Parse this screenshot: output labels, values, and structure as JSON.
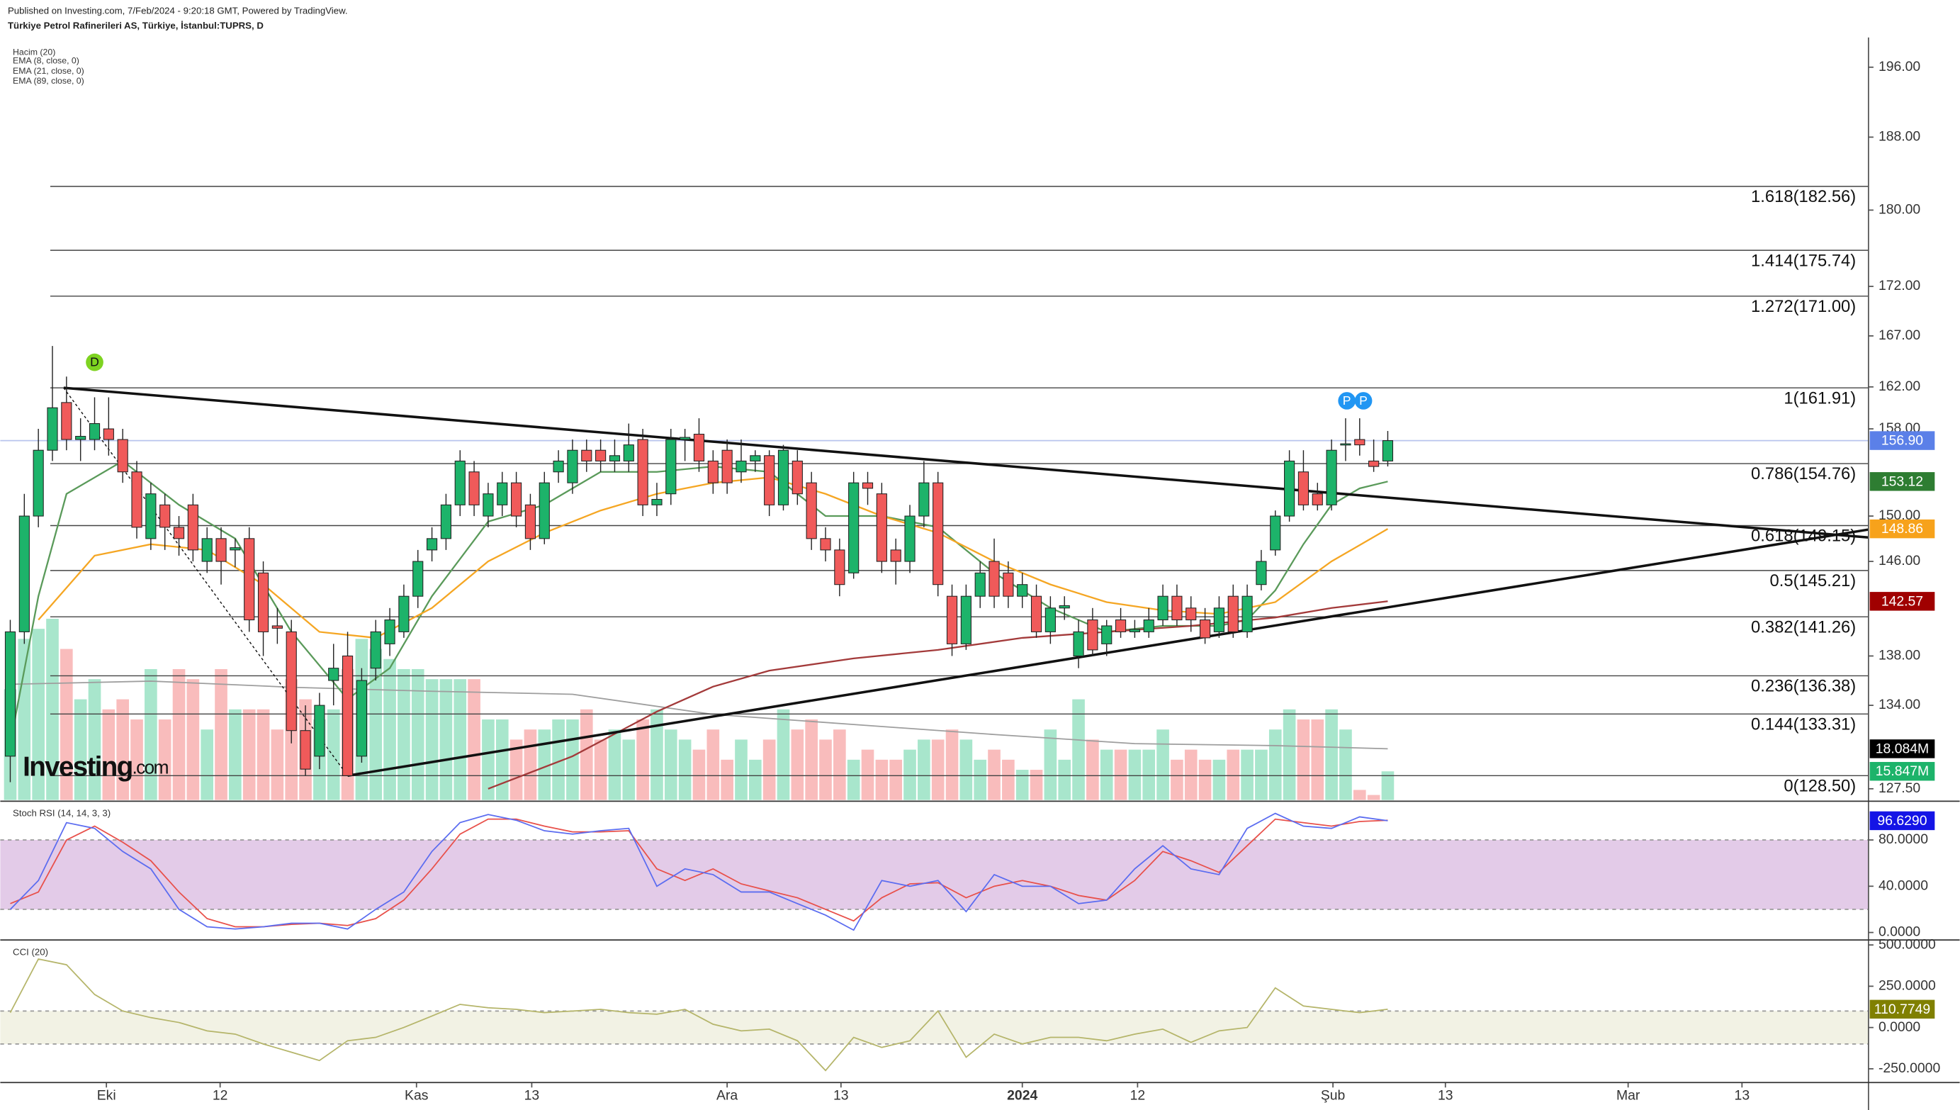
{
  "chart_data": {
    "type": "candlestick",
    "published": "Published on Investing.com, 7/Feb/2024 - 9:20:18 GMT, Powered by TradingView.",
    "title": "Türkiye Petrol Rafinerileri AS, Türkiye, İstanbul:TUPRS, D",
    "logo": {
      "brand": "Investing",
      "suffix": ".com"
    },
    "log_scale": true,
    "xlim": [
      -0.71,
      132.2
    ],
    "ylim": [
      126.65,
      199.5
    ],
    "xticks": [
      {
        "value": 6.84,
        "label": "Eki"
      },
      {
        "value": 14.93,
        "label": "12"
      },
      {
        "value": 28.9,
        "label": "Kas"
      },
      {
        "value": 37.1,
        "label": "13"
      },
      {
        "value": 51.0,
        "label": "Ara"
      },
      {
        "value": 59.1,
        "label": "13"
      },
      {
        "value": 72.0,
        "label": "2024"
      },
      {
        "value": 80.2,
        "label": "12"
      },
      {
        "value": 94.1,
        "label": "Şub"
      },
      {
        "value": 102.1,
        "label": "13"
      },
      {
        "value": 115.1,
        "label": "Mar"
      },
      {
        "value": 123.2,
        "label": "13"
      }
    ],
    "yticks": [
      {
        "value": 196,
        "label": "196.00"
      },
      {
        "value": 188,
        "label": "188.00"
      },
      {
        "value": 180,
        "label": "180.00"
      },
      {
        "value": 172,
        "label": "172.00"
      },
      {
        "value": 167,
        "label": "167.00"
      },
      {
        "value": 162,
        "label": "162.00"
      },
      {
        "value": 158,
        "label": "158.00"
      },
      {
        "value": 150,
        "label": "150.00"
      },
      {
        "value": 146,
        "label": "146.00"
      },
      {
        "value": 138,
        "label": "138.00"
      },
      {
        "value": 134,
        "label": "134.00"
      },
      {
        "value": 127.5,
        "label": "127.50"
      }
    ],
    "candles": {
      "up_color": "#1db36a",
      "down_color": "#f05a5a",
      "open": [
        130,
        140,
        150,
        156,
        160.5,
        157,
        157,
        158,
        157,
        154,
        148,
        151,
        149,
        151,
        146,
        148,
        147,
        148,
        145,
        140.5,
        140,
        132,
        130,
        136,
        138,
        130,
        137,
        139,
        140,
        143,
        147,
        148,
        151,
        154,
        150,
        151,
        153,
        151,
        148,
        154,
        153,
        156,
        156,
        155,
        155,
        157,
        151,
        152,
        157,
        157.5,
        155,
        156,
        154,
        155,
        155.5,
        151,
        155,
        153,
        148,
        147,
        145,
        153,
        152,
        147,
        146,
        150,
        153,
        143,
        139,
        143,
        146,
        145,
        143,
        143,
        140,
        142,
        138,
        141,
        139,
        141,
        140,
        140,
        141,
        143,
        142,
        141,
        140,
        143,
        140,
        144,
        147,
        150,
        154,
        152,
        151,
        156.5,
        157,
        155,
        155
      ],
      "high": [
        141,
        152,
        158,
        166,
        163,
        159,
        161,
        161,
        158,
        155,
        153,
        152,
        150,
        152,
        149,
        149,
        148,
        149,
        146,
        142,
        141,
        134,
        135,
        139,
        140,
        137,
        141,
        142,
        144,
        147,
        149,
        152,
        156,
        155,
        153,
        154,
        154,
        152,
        154,
        156,
        157,
        157,
        157,
        157,
        158.5,
        158,
        153,
        158,
        158,
        159,
        156,
        157,
        157,
        156,
        156,
        156.5,
        156,
        154,
        149,
        148,
        154,
        154,
        153,
        148,
        151,
        155,
        154,
        144,
        144,
        146,
        148,
        146,
        145,
        144,
        143,
        143,
        141,
        142,
        141,
        142,
        141,
        142,
        144,
        144,
        143,
        142,
        143,
        144,
        144,
        147,
        150.5,
        156,
        156,
        153,
        157,
        159,
        159,
        157,
        157.8
      ],
      "low": [
        128,
        139,
        149,
        155,
        156,
        155,
        156,
        155.5,
        153,
        148,
        147,
        147,
        146.5,
        146,
        145,
        144,
        145.5,
        140,
        138,
        139,
        131,
        128.5,
        129,
        134,
        128.5,
        129.5,
        136,
        138,
        139.5,
        142,
        146,
        147,
        150,
        150,
        149,
        150,
        149,
        147,
        147.5,
        153,
        152,
        154,
        154,
        154,
        154,
        150,
        150,
        151,
        155,
        154,
        152,
        152,
        153,
        154,
        150,
        150.5,
        151,
        147,
        146,
        143,
        144.5,
        151,
        145,
        144,
        145,
        149,
        143,
        138,
        138.5,
        142,
        142,
        142,
        142,
        139.5,
        139,
        141,
        137,
        138,
        138,
        139.5,
        139.5,
        139.5,
        140.5,
        140.5,
        140,
        139,
        139.5,
        139.5,
        139.5,
        143.5,
        146.5,
        149.5,
        150.5,
        150.5,
        150.5,
        155,
        155.5,
        154,
        154.5
      ],
      "close": [
        140,
        150,
        156,
        160,
        157,
        157.3,
        158.5,
        157,
        154,
        149,
        152,
        149,
        148,
        147,
        148,
        146,
        147.2,
        141,
        140,
        140.3,
        132,
        129,
        134,
        137,
        128.5,
        136,
        140,
        141,
        143,
        146,
        148,
        151,
        155,
        151,
        152,
        153,
        150,
        148,
        153,
        155,
        156,
        155,
        155,
        155.5,
        156.5,
        151,
        151.5,
        157,
        157.2,
        155,
        153,
        153,
        155,
        155.5,
        151,
        156,
        152,
        148,
        147,
        144,
        153,
        152.5,
        146,
        146,
        150,
        153,
        144,
        139,
        143,
        145,
        143,
        143,
        144,
        140,
        142,
        142.2,
        140,
        138.5,
        140.5,
        140,
        140.2,
        141,
        143,
        141,
        141,
        139.5,
        142,
        140,
        143,
        146,
        150,
        155,
        151,
        151,
        156,
        156.6,
        156.5,
        154.5,
        156.9
      ]
    },
    "volume": {
      "name": "Hacim (20)",
      "up_color": "#a8e6cc",
      "down_color": "#f9bcbc",
      "vlim": [
        13,
        31
      ],
      "values": [
        24,
        29,
        30,
        31,
        28,
        23,
        25,
        22,
        23,
        21,
        26,
        21,
        26,
        25,
        20,
        26,
        22,
        22,
        22,
        20,
        25,
        23,
        21,
        22,
        26,
        29,
        28,
        27,
        26,
        26,
        25,
        25,
        25,
        25,
        21,
        21,
        19,
        20,
        20,
        21,
        21,
        22,
        19,
        20,
        19,
        21,
        22,
        20,
        19,
        18,
        20,
        17,
        19,
        17,
        19,
        22,
        20,
        21,
        19,
        20,
        17,
        18,
        17,
        17,
        18,
        19,
        19,
        20,
        19,
        17,
        18,
        17,
        16,
        16,
        20,
        17,
        23,
        19,
        18,
        18,
        18,
        18,
        20,
        17,
        18,
        17,
        17,
        18,
        18,
        18,
        20,
        22,
        21,
        21,
        22,
        20,
        14,
        13.5,
        15.847
      ],
      "ma": {
        "color": "#9e9e9e",
        "x": [
          0,
          10,
          20,
          30,
          40,
          50,
          60,
          70,
          80,
          90,
          98
        ],
        "values": [
          24.5,
          24.8,
          24.2,
          23.8,
          23.5,
          21.5,
          20.5,
          19.5,
          18.6,
          18.4,
          18.084
        ]
      }
    },
    "series": [
      {
        "name": "EMA (8, close, 0)",
        "color": "#5a9a5a",
        "x": [
          0,
          2,
          4,
          8,
          12,
          16,
          20,
          24,
          27,
          30,
          34,
          38,
          42,
          46,
          50,
          54,
          58,
          62,
          66,
          70,
          74,
          78,
          82,
          86,
          88,
          90,
          92,
          94,
          96,
          98
        ],
        "values": [
          131,
          143,
          152,
          155,
          151,
          148,
          140,
          134.5,
          137,
          143,
          149.5,
          151,
          154,
          154,
          154.5,
          154,
          150,
          150,
          149,
          145,
          142,
          140,
          140.5,
          140.5,
          141,
          143.5,
          147.5,
          151,
          152.5,
          153.12
        ]
      },
      {
        "name": "EMA (21, close, 0)",
        "color": "#f5a623",
        "x": [
          2,
          6,
          10,
          14,
          18,
          22,
          26,
          30,
          34,
          38,
          42,
          46,
          50,
          54,
          58,
          62,
          66,
          70,
          74,
          78,
          82,
          86,
          90,
          94,
          98
        ],
        "values": [
          141,
          146.5,
          147.5,
          147,
          144,
          140,
          139.5,
          142,
          146,
          148.5,
          150.5,
          152,
          153,
          153.5,
          152,
          150,
          148.5,
          146,
          144,
          142.5,
          141.8,
          141.5,
          142.5,
          146,
          148.86
        ]
      },
      {
        "name": "EMA (89, close, 0)",
        "color": "#a33a3a",
        "x": [
          34,
          40,
          46,
          50,
          54,
          60,
          66,
          72,
          78,
          84,
          90,
          94,
          98
        ],
        "values": [
          127.5,
          130,
          133.5,
          135.5,
          136.8,
          137.8,
          138.5,
          139.5,
          140,
          140.5,
          141.2,
          142,
          142.57
        ]
      }
    ],
    "fibonacci": [
      {
        "label": "1.618(182.56)",
        "value": 182.56
      },
      {
        "label": "1.414(175.74)",
        "value": 175.74
      },
      {
        "label": "1.272(171.00)",
        "value": 171.0
      },
      {
        "label": "1(161.91)",
        "value": 161.91
      },
      {
        "label": "0.786(154.76)",
        "value": 154.76
      },
      {
        "label": "0.618(149.15)",
        "value": 149.15
      },
      {
        "label": "0.5(145.21)",
        "value": 145.21
      },
      {
        "label": "0.382(141.26)",
        "value": 141.26
      },
      {
        "label": "0.236(136.38)",
        "value": 136.38
      },
      {
        "label": "0.144(133.31)",
        "value": 133.31
      },
      {
        "label": "0(128.50)",
        "value": 128.5
      }
    ],
    "trendlines": [
      {
        "x": [
          3.8,
          132.2
        ],
        "y": [
          161.91,
          148.1
        ],
        "dashed": false
      },
      {
        "x": [
          24,
          132.2
        ],
        "y": [
          128.5,
          148.8
        ],
        "dashed": false
      },
      {
        "x": [
          3.8,
          24
        ],
        "y": [
          161.91,
          128.5
        ],
        "dashed": true
      }
    ],
    "markers": [
      {
        "label": "D",
        "x": 6,
        "color": "#7ed321"
      },
      {
        "label": "P",
        "x": 95,
        "color": "#2196f3"
      },
      {
        "label": "P",
        "x": 96,
        "color": "#2196f3"
      }
    ],
    "price_tags": [
      {
        "label": "156.90",
        "value": 156.9,
        "color": "#5b80e8"
      },
      {
        "label": "153.12",
        "value": 153.12,
        "color": "#2e7d32"
      },
      {
        "label": "148.86",
        "value": 148.86,
        "color": "#f7a21b"
      },
      {
        "label": "142.57",
        "value": 142.57,
        "color": "#a00000"
      }
    ],
    "volume_tags": [
      {
        "label": "18.084M",
        "value": 18.084,
        "color": "#000000"
      },
      {
        "label": "15.847M",
        "value": 15.847,
        "color": "#1db36a"
      }
    ],
    "stoch_rsi": {
      "title": "Stoch RSI (14, 14, 3, 3)",
      "ylim": [
        -6.5,
        112.4
      ],
      "band": [
        20,
        80
      ],
      "yticks": [
        {
          "value": 80,
          "label": "80.0000"
        },
        {
          "value": 40,
          "label": "40.0000"
        },
        {
          "value": 0,
          "label": "0.0000"
        }
      ],
      "x": [
        0,
        2,
        4,
        6,
        8,
        10,
        12,
        14,
        16,
        18,
        20,
        22,
        24,
        26,
        28,
        30,
        32,
        34,
        36,
        38,
        40,
        42,
        44,
        46,
        48,
        50,
        52,
        54,
        56,
        58,
        60,
        62,
        64,
        66,
        68,
        70,
        72,
        74,
        76,
        78,
        80,
        82,
        84,
        86,
        88,
        90,
        92,
        94,
        96,
        98
      ],
      "k": {
        "color": "#5b6cf0",
        "values": [
          20,
          45,
          95,
          90,
          70,
          55,
          20,
          5,
          3,
          5,
          8,
          8,
          3,
          20,
          35,
          70,
          95,
          102,
          97,
          88,
          85,
          88,
          90,
          40,
          55,
          50,
          35,
          35,
          25,
          15,
          2,
          45,
          40,
          45,
          18,
          50,
          40,
          40,
          25,
          28,
          55,
          75,
          55,
          50,
          90,
          103,
          92,
          90,
          100,
          96.629
        ]
      },
      "d": {
        "color": "#e8504a",
        "values": [
          25,
          35,
          80,
          92,
          78,
          62,
          35,
          12,
          5,
          5,
          7,
          8,
          6,
          12,
          28,
          55,
          85,
          98,
          98,
          92,
          87,
          87,
          88,
          55,
          45,
          55,
          42,
          36,
          30,
          20,
          10,
          30,
          42,
          43,
          30,
          40,
          45,
          40,
          32,
          28,
          45,
          70,
          62,
          52,
          75,
          98,
          95,
          92,
          96,
          97
        ]
      },
      "tag": {
        "label": "96.6290",
        "value": 96.629,
        "color": "#1414e6"
      }
    },
    "cci": {
      "title": "CCI (20)",
      "ylim": [
        -333,
        530
      ],
      "band": [
        -100,
        100
      ],
      "color": "#b5b56a",
      "yticks": [
        {
          "value": 500,
          "label": "500.0000"
        },
        {
          "value": 250,
          "label": "250.0000"
        },
        {
          "value": 0,
          "label": "0.0000"
        },
        {
          "value": -250,
          "label": "-250.0000"
        }
      ],
      "x": [
        0,
        2,
        4,
        6,
        8,
        10,
        12,
        14,
        16,
        18,
        20,
        22,
        24,
        26,
        28,
        30,
        32,
        34,
        36,
        38,
        40,
        42,
        44,
        46,
        48,
        50,
        52,
        54,
        56,
        58,
        60,
        62,
        64,
        66,
        68,
        70,
        72,
        74,
        76,
        78,
        80,
        82,
        84,
        86,
        88,
        90,
        92,
        94,
        96,
        98
      ],
      "values": [
        90,
        415,
        380,
        200,
        100,
        60,
        30,
        -20,
        -40,
        -100,
        -150,
        -200,
        -80,
        -60,
        0,
        70,
        140,
        120,
        110,
        90,
        100,
        110,
        90,
        80,
        110,
        20,
        -20,
        -10,
        -80,
        -260,
        -60,
        -120,
        -80,
        100,
        -180,
        -40,
        -100,
        -60,
        -60,
        -80,
        -40,
        -10,
        -90,
        -20,
        0,
        240,
        130,
        110,
        90,
        110.77
      ],
      "tag": {
        "label": "110.7749",
        "value": 110.77,
        "color": "#808000"
      }
    }
  }
}
